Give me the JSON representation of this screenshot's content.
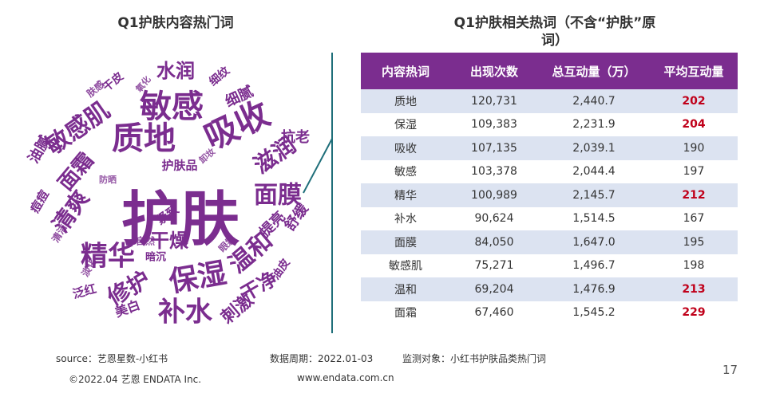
{
  "left_title": "Q1护肤内容热门词",
  "right_title_line1": "Q1护肤相关热词（不含“护肤”原",
  "right_title_line2": "词）",
  "word_cloud": {
    "words": [
      {
        "text": "护肤"
      },
      {
        "text": "敏感"
      },
      {
        "text": "吸收"
      },
      {
        "text": "质地"
      },
      {
        "text": "敏感肌"
      },
      {
        "text": "滋润"
      },
      {
        "text": "面膜"
      },
      {
        "text": "清爽"
      },
      {
        "text": "精华"
      },
      {
        "text": "保湿"
      },
      {
        "text": "补水"
      },
      {
        "text": "修护"
      },
      {
        "text": "温和"
      },
      {
        "text": "面霜"
      },
      {
        "text": "水润"
      },
      {
        "text": "干燥"
      },
      {
        "text": "干净"
      },
      {
        "text": "刺激"
      },
      {
        "text": "油腻"
      },
      {
        "text": "细腻"
      },
      {
        "text": "抗老"
      },
      {
        "text": "痘痘"
      },
      {
        "text": "舒缓"
      },
      {
        "text": "提亮"
      },
      {
        "text": "美白"
      },
      {
        "text": "泛红"
      },
      {
        "text": "紧致"
      },
      {
        "text": "护肤品"
      },
      {
        "text": "细纹"
      },
      {
        "text": "干皮"
      },
      {
        "text": "油皮"
      },
      {
        "text": "暗沉"
      },
      {
        "text": "自然"
      },
      {
        "text": "淡化"
      },
      {
        "text": "清洁"
      },
      {
        "text": "防晒"
      },
      {
        "text": "肤感"
      },
      {
        "text": "氧化"
      },
      {
        "text": "卸妆"
      },
      {
        "text": "眼霜"
      }
    ],
    "color": "#7b2d8f"
  },
  "chart_data": {
    "type": "table",
    "title": "Q1护肤相关热词（不含“护肤”原词）",
    "columns": [
      "内容热词",
      "出现次数",
      "总互动量（万）",
      "平均互动量"
    ],
    "rows": [
      [
        "质地",
        "120,731",
        "2,440.7",
        "202"
      ],
      [
        "保湿",
        "109,383",
        "2,231.9",
        "204"
      ],
      [
        "吸收",
        "107,135",
        "2,039.1",
        "190"
      ],
      [
        "敏感",
        "103,378",
        "2,044.4",
        "197"
      ],
      [
        "精华",
        "100,989",
        "2,145.7",
        "212"
      ],
      [
        "补水",
        "90,624",
        "1,514.5",
        "167"
      ],
      [
        "面膜",
        "84,050",
        "1,647.0",
        "195"
      ],
      [
        "敏感肌",
        "75,271",
        "1,496.7",
        "198"
      ],
      [
        "温和",
        "69,204",
        "1,476.9",
        "213"
      ],
      [
        "面霜",
        "67,460",
        "1,545.2",
        "229"
      ]
    ],
    "highlighted_avg_rows": [
      0,
      1,
      4,
      8,
      9
    ],
    "header_color": "#7b2d8f",
    "stripe_color": "#dce3f1",
    "highlight_color": "#c0001a"
  },
  "footer": {
    "source": "source：艺恩星数-小红书",
    "period": "数据周期：2022.01-03",
    "target": "监测对象：小红书护肤品类热门词",
    "copyright": "©2022.04 艺恩 ENDATA Inc.",
    "website": "www.endata.com.cn",
    "page_number": "17"
  }
}
